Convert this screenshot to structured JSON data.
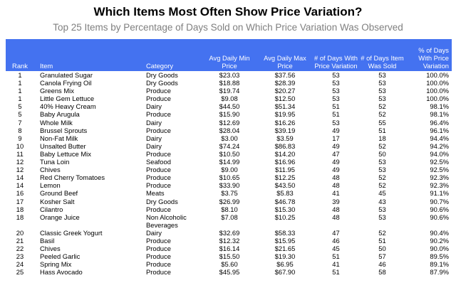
{
  "title": "Which Items Most Often Show Price Variation?",
  "subtitle": "Top 25 Items by Percentage of Days Sold on Which Price Variation Was Observed",
  "headers": {
    "rank": "Rank",
    "item": "Item",
    "category": "Category",
    "avg_min": "Avg Daily Min Price",
    "avg_max": "Avg Daily Max Price",
    "days_var": "# of Days With Price Variation",
    "days_sold": "# of Days Item Was Sold",
    "pct": "% of Days With Price Variation"
  },
  "rows": [
    {
      "rank": "1",
      "item": "Granulated Sugar",
      "category": "Dry Goods",
      "min": "$23.03",
      "max": "$37.56",
      "var": "53",
      "sold": "53",
      "pct": "100.0%"
    },
    {
      "rank": "1",
      "item": "Canola Frying Oil",
      "category": "Dry Goods",
      "min": "$18.88",
      "max": "$28.39",
      "var": "53",
      "sold": "53",
      "pct": "100.0%"
    },
    {
      "rank": "1",
      "item": "Greens Mix",
      "category": "Produce",
      "min": "$19.74",
      "max": "$20.27",
      "var": "53",
      "sold": "53",
      "pct": "100.0%"
    },
    {
      "rank": "1",
      "item": "Little Gem Lettuce",
      "category": "Produce",
      "min": "$9.08",
      "max": "$12.50",
      "var": "53",
      "sold": "53",
      "pct": "100.0%"
    },
    {
      "rank": "5",
      "item": "40% Heavy Cream",
      "category": "Dairy",
      "min": "$44.50",
      "max": "$51.34",
      "var": "51",
      "sold": "52",
      "pct": "98.1%"
    },
    {
      "rank": "5",
      "item": "Baby Arugula",
      "category": "Produce",
      "min": "$15.90",
      "max": "$19.95",
      "var": "51",
      "sold": "52",
      "pct": "98.1%"
    },
    {
      "rank": "7",
      "item": "Whole Milk",
      "category": "Dairy",
      "min": "$12.69",
      "max": "$16.26",
      "var": "53",
      "sold": "55",
      "pct": "96.4%"
    },
    {
      "rank": "8",
      "item": "Brussel Sprouts",
      "category": "Produce",
      "min": "$28.04",
      "max": "$39.19",
      "var": "49",
      "sold": "51",
      "pct": "96.1%"
    },
    {
      "rank": "9",
      "item": "Non-Fat Milk",
      "category": "Dairy",
      "min": "$3.00",
      "max": "$3.59",
      "var": "17",
      "sold": "18",
      "pct": "94.4%"
    },
    {
      "rank": "10",
      "item": "Unsalted Butter",
      "category": "Dairy",
      "min": "$74.24",
      "max": "$86.83",
      "var": "49",
      "sold": "52",
      "pct": "94.2%"
    },
    {
      "rank": "11",
      "item": "Baby Lettuce Mix",
      "category": "Produce",
      "min": "$10.50",
      "max": "$14.20",
      "var": "47",
      "sold": "50",
      "pct": "94.0%"
    },
    {
      "rank": "12",
      "item": "Tuna Loin",
      "category": "Seafood",
      "min": "$14.99",
      "max": "$16.96",
      "var": "49",
      "sold": "53",
      "pct": "92.5%"
    },
    {
      "rank": "12",
      "item": "Chives",
      "category": "Produce",
      "min": "$9.00",
      "max": "$11.95",
      "var": "49",
      "sold": "53",
      "pct": "92.5%"
    },
    {
      "rank": "14",
      "item": "Red Cherry Tomatoes",
      "category": "Produce",
      "min": "$10.65",
      "max": "$12.25",
      "var": "48",
      "sold": "52",
      "pct": "92.3%"
    },
    {
      "rank": "14",
      "item": "Lemon",
      "category": "Produce",
      "min": "$33.90",
      "max": "$43.50",
      "var": "48",
      "sold": "52",
      "pct": "92.3%"
    },
    {
      "rank": "16",
      "item": "Ground Beef",
      "category": "Meats",
      "min": "$3.75",
      "max": "$5.83",
      "var": "41",
      "sold": "45",
      "pct": "91.1%"
    },
    {
      "rank": "17",
      "item": "Kosher Salt",
      "category": "Dry Goods",
      "min": "$26.99",
      "max": "$46.78",
      "var": "39",
      "sold": "43",
      "pct": "90.7%"
    },
    {
      "rank": "18",
      "item": "Cilantro",
      "category": "Produce",
      "min": "$8.10",
      "max": "$15.30",
      "var": "48",
      "sold": "53",
      "pct": "90.6%"
    },
    {
      "rank": "18",
      "item": "Orange Juice",
      "category": "Non Alcoholic Beverages",
      "min": "$7.08",
      "max": "$10.25",
      "var": "48",
      "sold": "53",
      "pct": "90.6%"
    },
    {
      "rank": "20",
      "item": "Classic Greek Yogurt",
      "category": "Dairy",
      "min": "$32.69",
      "max": "$58.33",
      "var": "47",
      "sold": "52",
      "pct": "90.4%"
    },
    {
      "rank": "21",
      "item": "Basil",
      "category": "Produce",
      "min": "$12.32",
      "max": "$15.95",
      "var": "46",
      "sold": "51",
      "pct": "90.2%"
    },
    {
      "rank": "22",
      "item": "Chives",
      "category": "Produce",
      "min": "$16.14",
      "max": "$21.65",
      "var": "45",
      "sold": "50",
      "pct": "90.0%"
    },
    {
      "rank": "23",
      "item": "Peeled Garlic",
      "category": "Produce",
      "min": "$15.50",
      "max": "$19.30",
      "var": "51",
      "sold": "57",
      "pct": "89.5%"
    },
    {
      "rank": "24",
      "item": "Spring Mix",
      "category": "Produce",
      "min": "$5.60",
      "max": "$6.95",
      "var": "41",
      "sold": "46",
      "pct": "89.1%"
    },
    {
      "rank": "25",
      "item": "Hass Avocado",
      "category": "Produce",
      "min": "$45.95",
      "max": "$67.90",
      "var": "51",
      "sold": "58",
      "pct": "87.9%"
    }
  ]
}
